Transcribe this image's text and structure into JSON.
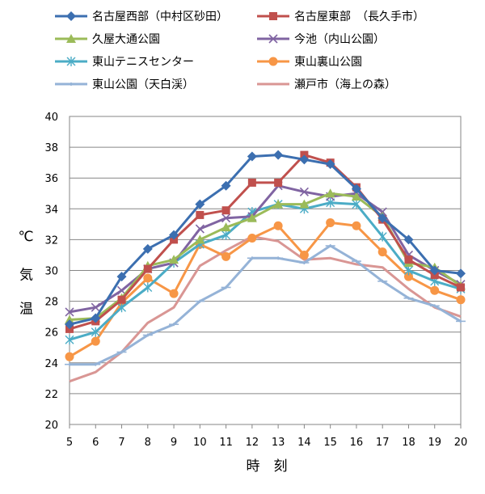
{
  "chart_data": {
    "type": "line",
    "xlabel": "時　刻",
    "ylabel": "気　温",
    "yunit": "℃",
    "x": [
      5,
      6,
      7,
      8,
      9,
      10,
      11,
      12,
      13,
      14,
      15,
      16,
      17,
      18,
      19,
      20
    ],
    "xlim": [
      5,
      20
    ],
    "ylim": [
      20,
      40
    ],
    "ytick_step": 2,
    "grid": true,
    "legend_position": "top",
    "series": [
      {
        "name": "名古屋西部（中村区砂田）",
        "color": "#3c6fb0",
        "marker": "diamond",
        "values": [
          26.5,
          26.9,
          29.6,
          31.4,
          32.3,
          34.3,
          35.5,
          37.4,
          37.5,
          37.2,
          36.9,
          35.3,
          33.4,
          32.0,
          30.0,
          29.8
        ]
      },
      {
        "name": "名古屋東部　（長久手市）",
        "color": "#c0504d",
        "marker": "square",
        "values": [
          26.2,
          26.7,
          28.1,
          30.1,
          32.0,
          33.6,
          33.9,
          35.7,
          35.7,
          37.5,
          37.0,
          35.4,
          33.3,
          30.7,
          29.7,
          28.9
        ]
      },
      {
        "name": "久屋大通公園",
        "color": "#9bbb59",
        "marker": "triangle",
        "values": [
          26.8,
          26.9,
          28.2,
          30.3,
          30.7,
          32.0,
          32.8,
          33.4,
          34.3,
          34.3,
          35.0,
          34.8,
          33.5,
          30.5,
          30.2,
          29.0
        ]
      },
      {
        "name": "今池（内山公園）",
        "color": "#8064a2",
        "marker": "x",
        "values": [
          27.3,
          27.6,
          28.7,
          30.1,
          30.5,
          32.7,
          33.4,
          33.5,
          35.5,
          35.1,
          34.8,
          35.0,
          33.8,
          31.0,
          30.0,
          29.1
        ]
      },
      {
        "name": "東山テニスセンター",
        "color": "#4bacc6",
        "marker": "star",
        "values": [
          25.5,
          26.0,
          27.6,
          28.9,
          30.5,
          31.7,
          32.3,
          33.8,
          34.3,
          34.0,
          34.4,
          34.3,
          32.2,
          30.0,
          29.3,
          28.8
        ]
      },
      {
        "name": "東山裏山公園",
        "color": "#f79646",
        "marker": "circle",
        "values": [
          24.4,
          25.4,
          27.9,
          29.5,
          28.5,
          31.7,
          30.9,
          32.1,
          32.9,
          31.0,
          33.1,
          32.9,
          31.2,
          29.6,
          28.7,
          28.1
        ]
      },
      {
        "name": "東山公園（天白渓）",
        "color": "#95b3d7",
        "marker": "plus",
        "values": [
          23.9,
          23.9,
          24.7,
          25.8,
          26.5,
          28.0,
          28.9,
          30.8,
          30.8,
          30.5,
          31.6,
          30.6,
          29.3,
          28.2,
          27.7,
          26.7
        ]
      },
      {
        "name": "瀬戸市（海上の森）",
        "color": "#d99694",
        "marker": "none",
        "values": [
          22.8,
          23.4,
          24.7,
          26.6,
          27.6,
          30.3,
          31.3,
          32.2,
          31.9,
          30.7,
          30.8,
          30.4,
          30.2,
          28.8,
          27.6,
          27.0
        ]
      }
    ]
  }
}
